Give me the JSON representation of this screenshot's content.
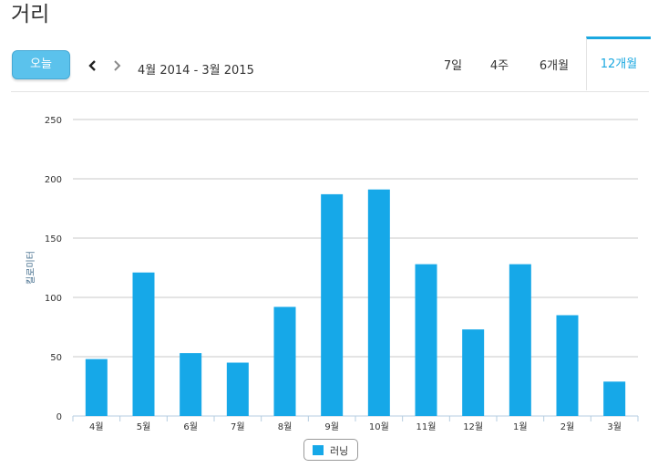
{
  "page": {
    "title": "거리"
  },
  "toolbar": {
    "today_label": "오늘",
    "range_label": "4월 2014 - 3월 2015",
    "tabs": [
      {
        "label": "7일",
        "active": false
      },
      {
        "label": "4주",
        "active": false
      },
      {
        "label": "6개월",
        "active": false
      },
      {
        "label": "12개월",
        "active": true
      }
    ]
  },
  "colors": {
    "bar": "#16a8e8",
    "accent": "#1ba8e0",
    "today_button": "#5bc2ec"
  },
  "chart_data": {
    "type": "bar",
    "title": "",
    "xlabel": "",
    "ylabel": "킬로미터",
    "categories": [
      "4월",
      "5월",
      "6월",
      "7월",
      "8월",
      "9월",
      "10월",
      "11월",
      "12월",
      "1월",
      "2월",
      "3월"
    ],
    "series": [
      {
        "name": "러닝",
        "values": [
          48,
          121,
          53,
          45,
          92,
          187,
          191,
          128,
          73,
          128,
          85,
          29
        ]
      }
    ],
    "ylim": [
      0,
      250
    ],
    "yticks": [
      0,
      50,
      100,
      150,
      200,
      250
    ],
    "grid": true,
    "legend": "bottom-center"
  }
}
